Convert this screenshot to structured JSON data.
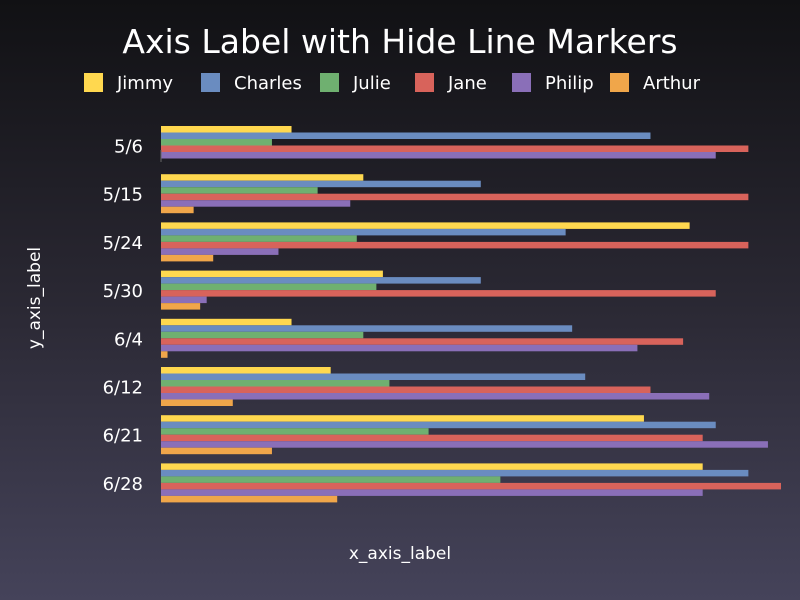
{
  "chart_data": {
    "type": "bar",
    "orientation": "horizontal",
    "title": "Axis Label with Hide Line Markers",
    "xlabel": "x_axis_label",
    "ylabel": "y_axis_label",
    "categories": [
      "5/6",
      "5/15",
      "5/24",
      "5/30",
      "6/4",
      "6/12",
      "6/21",
      "6/28"
    ],
    "xlim": [
      0,
      95
    ],
    "x_ticks_visible": false,
    "grid": false,
    "legend_position": "top",
    "series": [
      {
        "name": "Jimmy",
        "color": "#FFD84F",
        "values": [
          20,
          31,
          81,
          34,
          20,
          26,
          74,
          83
        ]
      },
      {
        "name": "Charles",
        "color": "#6A8CC0",
        "values": [
          75,
          49,
          62,
          49,
          63,
          65,
          85,
          90
        ]
      },
      {
        "name": "Julie",
        "color": "#6FB070",
        "values": [
          17,
          24,
          30,
          33,
          31,
          35,
          41,
          52
        ]
      },
      {
        "name": "Jane",
        "color": "#D8635B",
        "values": [
          90,
          90,
          90,
          85,
          80,
          75,
          83,
          95
        ]
      },
      {
        "name": "Philip",
        "color": "#8A6FB8",
        "values": [
          85,
          29,
          18,
          7,
          73,
          84,
          93,
          83
        ]
      },
      {
        "name": "Arthur",
        "color": "#F0A64A",
        "values": [
          0,
          5,
          8,
          6,
          1,
          11,
          17,
          27
        ]
      }
    ]
  }
}
